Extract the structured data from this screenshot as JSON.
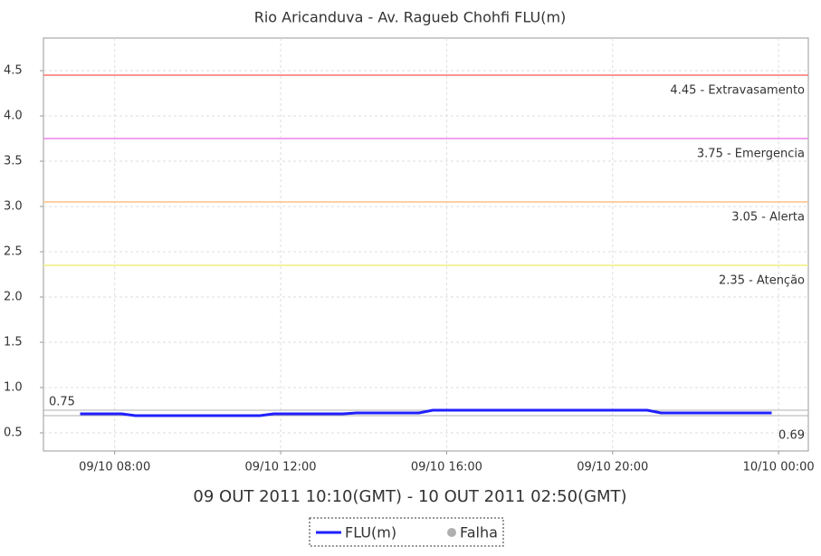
{
  "chart_data": {
    "type": "line",
    "title": "Rio Aricanduva - Av. Ragueb Chohfi FLU(m)",
    "xlabel": "09 OUT 2011 10:10(GMT) - 10 OUT 2011 02:50(GMT)",
    "x": [
      "09/10 07:10",
      "09/10 08:10",
      "09/10 08:30",
      "09/10 11:30",
      "09/10 11:50",
      "09/10 13:30",
      "09/10 13:50",
      "09/10 15:20",
      "09/10 15:40",
      "09/10 20:50",
      "09/10 21:10",
      "09/10 23:50"
    ],
    "series": [
      {
        "name": "FLU(m)",
        "color": "#2020ff",
        "values": [
          0.71,
          0.71,
          0.69,
          0.69,
          0.71,
          0.71,
          0.72,
          0.72,
          0.75,
          0.75,
          0.72,
          0.72
        ]
      }
    ],
    "failure_legend": {
      "name": "Falha",
      "color": "#b0b0b0"
    },
    "xlim": [
      "09/10 06:17",
      "10/10 00:43"
    ],
    "xticks": [
      "09/10 08:00",
      "09/10 12:00",
      "09/10 16:00",
      "09/10 20:00",
      "10/10 00:00"
    ],
    "ylim": [
      0.3,
      4.86
    ],
    "yticks": [
      0.5,
      {
        "value": 1,
        "label": "1.0"
      },
      1.5,
      {
        "value": 2,
        "label": "2.0"
      },
      2.5,
      {
        "value": 3,
        "label": "3.0"
      },
      3.5,
      {
        "value": 4,
        "label": "4.0"
      },
      4.5
    ],
    "grid": true,
    "markers": [
      {
        "value": 4.45,
        "label": "4.45 - Extravasamento",
        "color": "#ff7070"
      },
      {
        "value": 3.75,
        "label": "3.75 - Emergencia",
        "color": "#ee80ee"
      },
      {
        "value": 3.05,
        "label": "3.05 - Alerta",
        "color": "#ffc080"
      },
      {
        "value": 2.35,
        "label": "2.35 - Atenção",
        "color": "#f0f080"
      }
    ],
    "max_line": {
      "value": 0.75,
      "label": "0.75",
      "color": "#b0b0b0"
    },
    "min_line": {
      "value": 0.69,
      "label": "0.69",
      "color": "#b0b0b0"
    }
  }
}
